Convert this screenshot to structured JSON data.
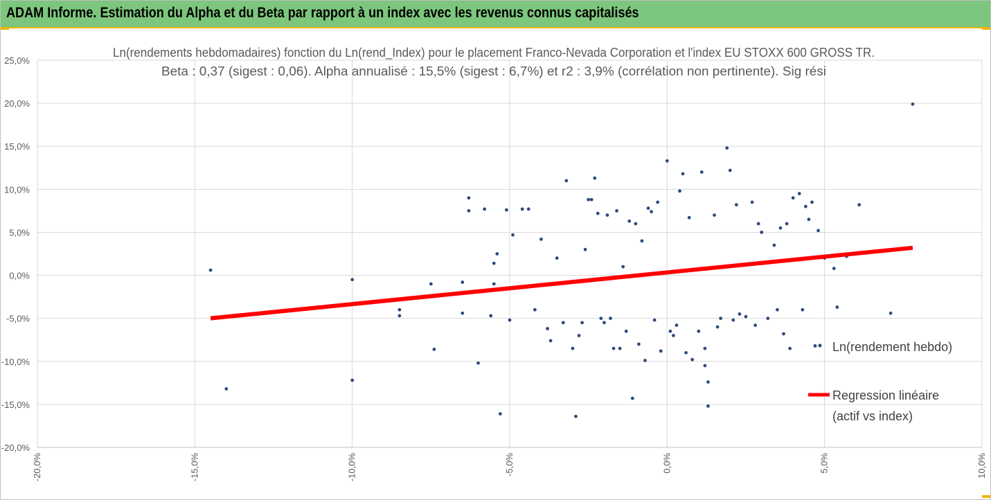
{
  "banner": {
    "title": "ADAM Informe. Estimation du Alpha et du Beta par rapport à un index avec les revenus connus capitalisés",
    "background": "#7dc67d",
    "accent": "#f0b400"
  },
  "chart_data": {
    "type": "scatter",
    "title_line1": "Ln(rendements hebdomadaires) fonction du Ln(rend_Index) pour le placement Franco-Nevada Corporation et l'index EU STOXX 600 GROSS TR.",
    "title_line2": "Beta : 0,37 (sigest : 0,06). Alpha annualisé : 15,5% (sigest : 6,7%) et r2 : 3,9% (corrélation non pertinente). Sig rési",
    "xlim": [
      -0.2,
      0.1
    ],
    "ylim": [
      -0.2,
      0.25
    ],
    "x_ticks": [
      -0.2,
      -0.15,
      -0.1,
      -0.05,
      0,
      0.05,
      0.1
    ],
    "x_tick_labels": [
      "-20,0%",
      "-15,0%",
      "-10,0%",
      "-5,0%",
      "0,0%",
      "5,0%",
      "10,0%"
    ],
    "y_ticks": [
      -0.2,
      -0.15,
      -0.1,
      -0.05,
      0,
      0.05,
      0.1,
      0.15,
      0.2,
      0.25
    ],
    "y_tick_labels": [
      "-20,0%",
      "-15,0%",
      "-10,0%",
      "-5,0%",
      "0,0%",
      "5,0%",
      "10,0%",
      "15,0%",
      "20,0%",
      "25,0%"
    ],
    "grid": true,
    "legend_position": "right",
    "series": [
      {
        "name": "Ln(rendement hebdo)",
        "color": "#2f4b7c",
        "marker": "dot",
        "points": [
          [
            -0.145,
            0.006
          ],
          [
            -0.14,
            -0.132
          ],
          [
            -0.1,
            -0.005
          ],
          [
            -0.1,
            -0.122
          ],
          [
            -0.085,
            -0.04
          ],
          [
            -0.085,
            -0.047
          ],
          [
            -0.075,
            -0.01
          ],
          [
            -0.074,
            -0.086
          ],
          [
            -0.065,
            -0.008
          ],
          [
            -0.065,
            -0.044
          ],
          [
            -0.063,
            0.09
          ],
          [
            -0.063,
            0.075
          ],
          [
            -0.06,
            -0.102
          ],
          [
            -0.058,
            0.077
          ],
          [
            -0.056,
            -0.047
          ],
          [
            -0.055,
            0.014
          ],
          [
            -0.055,
            -0.01
          ],
          [
            -0.054,
            0.025
          ],
          [
            -0.053,
            -0.161
          ],
          [
            -0.051,
            0.076
          ],
          [
            -0.05,
            -0.052
          ],
          [
            -0.049,
            0.047
          ],
          [
            -0.046,
            0.077
          ],
          [
            -0.044,
            0.077
          ],
          [
            -0.042,
            -0.04
          ],
          [
            -0.04,
            0.042
          ],
          [
            -0.038,
            -0.062
          ],
          [
            -0.037,
            -0.076
          ],
          [
            -0.035,
            0.02
          ],
          [
            -0.033,
            -0.055
          ],
          [
            -0.032,
            0.11
          ],
          [
            -0.03,
            -0.085
          ],
          [
            -0.029,
            -0.164
          ],
          [
            -0.028,
            -0.07
          ],
          [
            -0.027,
            -0.055
          ],
          [
            -0.026,
            0.03
          ],
          [
            -0.025,
            0.088
          ],
          [
            -0.024,
            0.088
          ],
          [
            -0.023,
            0.113
          ],
          [
            -0.022,
            0.072
          ],
          [
            -0.021,
            -0.05
          ],
          [
            -0.02,
            -0.055
          ],
          [
            -0.019,
            0.07
          ],
          [
            -0.018,
            -0.05
          ],
          [
            -0.017,
            -0.085
          ],
          [
            -0.016,
            0.075
          ],
          [
            -0.015,
            -0.085
          ],
          [
            -0.014,
            0.01
          ],
          [
            -0.013,
            -0.065
          ],
          [
            -0.012,
            0.063
          ],
          [
            -0.011,
            -0.143
          ],
          [
            -0.01,
            0.06
          ],
          [
            -0.009,
            -0.08
          ],
          [
            -0.008,
            0.04
          ],
          [
            -0.007,
            -0.099
          ],
          [
            -0.006,
            0.078
          ],
          [
            -0.005,
            0.074
          ],
          [
            -0.004,
            -0.052
          ],
          [
            -0.003,
            0.085
          ],
          [
            -0.002,
            -0.088
          ],
          [
            0.0,
            0.133
          ],
          [
            0.001,
            -0.065
          ],
          [
            0.002,
            -0.07
          ],
          [
            0.003,
            -0.058
          ],
          [
            0.004,
            0.098
          ],
          [
            0.005,
            0.118
          ],
          [
            0.006,
            -0.09
          ],
          [
            0.007,
            0.067
          ],
          [
            0.008,
            -0.098
          ],
          [
            0.01,
            -0.065
          ],
          [
            0.011,
            0.12
          ],
          [
            0.012,
            -0.085
          ],
          [
            0.012,
            -0.105
          ],
          [
            0.013,
            -0.124
          ],
          [
            0.013,
            -0.152
          ],
          [
            0.015,
            0.07
          ],
          [
            0.016,
            -0.06
          ],
          [
            0.017,
            -0.05
          ],
          [
            0.019,
            0.148
          ],
          [
            0.02,
            0.122
          ],
          [
            0.021,
            -0.052
          ],
          [
            0.022,
            0.082
          ],
          [
            0.023,
            -0.045
          ],
          [
            0.025,
            -0.048
          ],
          [
            0.027,
            0.085
          ],
          [
            0.028,
            -0.058
          ],
          [
            0.029,
            0.06
          ],
          [
            0.03,
            0.05
          ],
          [
            0.032,
            -0.05
          ],
          [
            0.034,
            0.035
          ],
          [
            0.035,
            -0.04
          ],
          [
            0.036,
            0.055
          ],
          [
            0.037,
            -0.068
          ],
          [
            0.038,
            0.06
          ],
          [
            0.039,
            -0.085
          ],
          [
            0.04,
            0.09
          ],
          [
            0.042,
            0.095
          ],
          [
            0.043,
            -0.04
          ],
          [
            0.044,
            0.08
          ],
          [
            0.045,
            0.065
          ],
          [
            0.046,
            0.085
          ],
          [
            0.047,
            -0.082
          ],
          [
            0.048,
            0.052
          ],
          [
            0.05,
            0.02
          ],
          [
            0.053,
            0.008
          ],
          [
            0.054,
            -0.037
          ],
          [
            0.057,
            0.022
          ],
          [
            0.061,
            0.082
          ],
          [
            0.071,
            -0.044
          ],
          [
            0.078,
            0.199
          ]
        ]
      },
      {
        "name": "Regression linéaire\n(actif vs index)",
        "color": "#ff0000",
        "line": [
          [
            -0.145,
            -0.05
          ],
          [
            0.078,
            0.032
          ]
        ]
      }
    ]
  }
}
